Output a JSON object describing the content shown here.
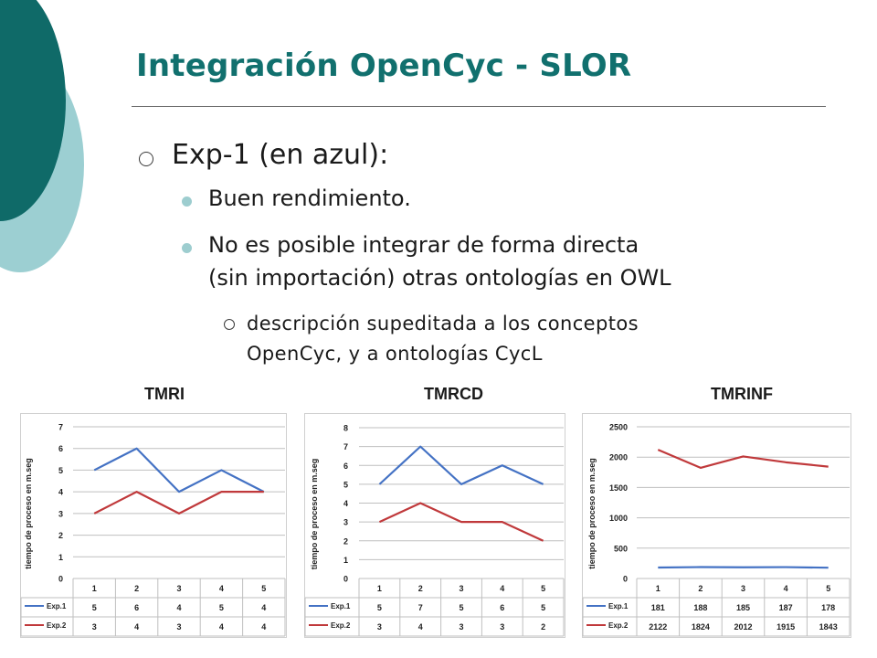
{
  "slide": {
    "title": "Integración OpenCyc - SLOR",
    "bullet": "Exp-1 (en azul):",
    "subbullets": [
      "Buen rendimiento.",
      "No es  posible integrar de forma directa",
      "(sin importación) otras ontologías en OWL"
    ],
    "subsubbullets": [
      "descripción supeditada a los conceptos",
      "OpenCyc, y a ontologías CycL"
    ]
  },
  "colors": {
    "title": "#11706e",
    "deco_dark": "#0f6a68",
    "deco_light": "#9ccfd2",
    "series_exp1": "#4472c4",
    "series_exp2": "#c0393b"
  },
  "chart_data": [
    {
      "type": "line",
      "title": "TMRI",
      "ylabel": "tiempo de proceso en m.seg",
      "categories": [
        "1",
        "2",
        "3",
        "4",
        "5"
      ],
      "yticks": [
        0,
        1,
        2,
        3,
        4,
        5,
        6,
        7
      ],
      "ylim": [
        0,
        7
      ],
      "grid": true,
      "series": [
        {
          "name": "Exp.1",
          "values": [
            5,
            6,
            4,
            5,
            4
          ]
        },
        {
          "name": "Exp.2",
          "values": [
            3,
            4,
            3,
            4,
            4
          ]
        }
      ]
    },
    {
      "type": "line",
      "title": "TMRCD",
      "ylabel": "tiempo de proceso en m.seg",
      "categories": [
        "1",
        "2",
        "3",
        "4",
        "5"
      ],
      "yticks": [
        0,
        1,
        2,
        3,
        4,
        5,
        6,
        7,
        8
      ],
      "ylim": [
        0,
        8
      ],
      "grid": true,
      "series": [
        {
          "name": "Exp.1",
          "values": [
            5,
            7,
            5,
            6,
            5
          ]
        },
        {
          "name": "Exp.2",
          "values": [
            3,
            4,
            3,
            3,
            2
          ]
        }
      ]
    },
    {
      "type": "line",
      "title": "TMRINF",
      "ylabel": "tiempo de proceso en m.seg",
      "categories": [
        "1",
        "2",
        "3",
        "4",
        "5"
      ],
      "yticks": [
        0,
        500,
        1000,
        1500,
        2000,
        2500
      ],
      "ylim": [
        0,
        2500
      ],
      "grid": true,
      "series": [
        {
          "name": "Exp.1",
          "values": [
            181,
            188,
            185,
            187,
            178
          ]
        },
        {
          "name": "Exp.2",
          "values": [
            2122,
            1824,
            2012,
            1915,
            1843
          ]
        }
      ]
    }
  ]
}
